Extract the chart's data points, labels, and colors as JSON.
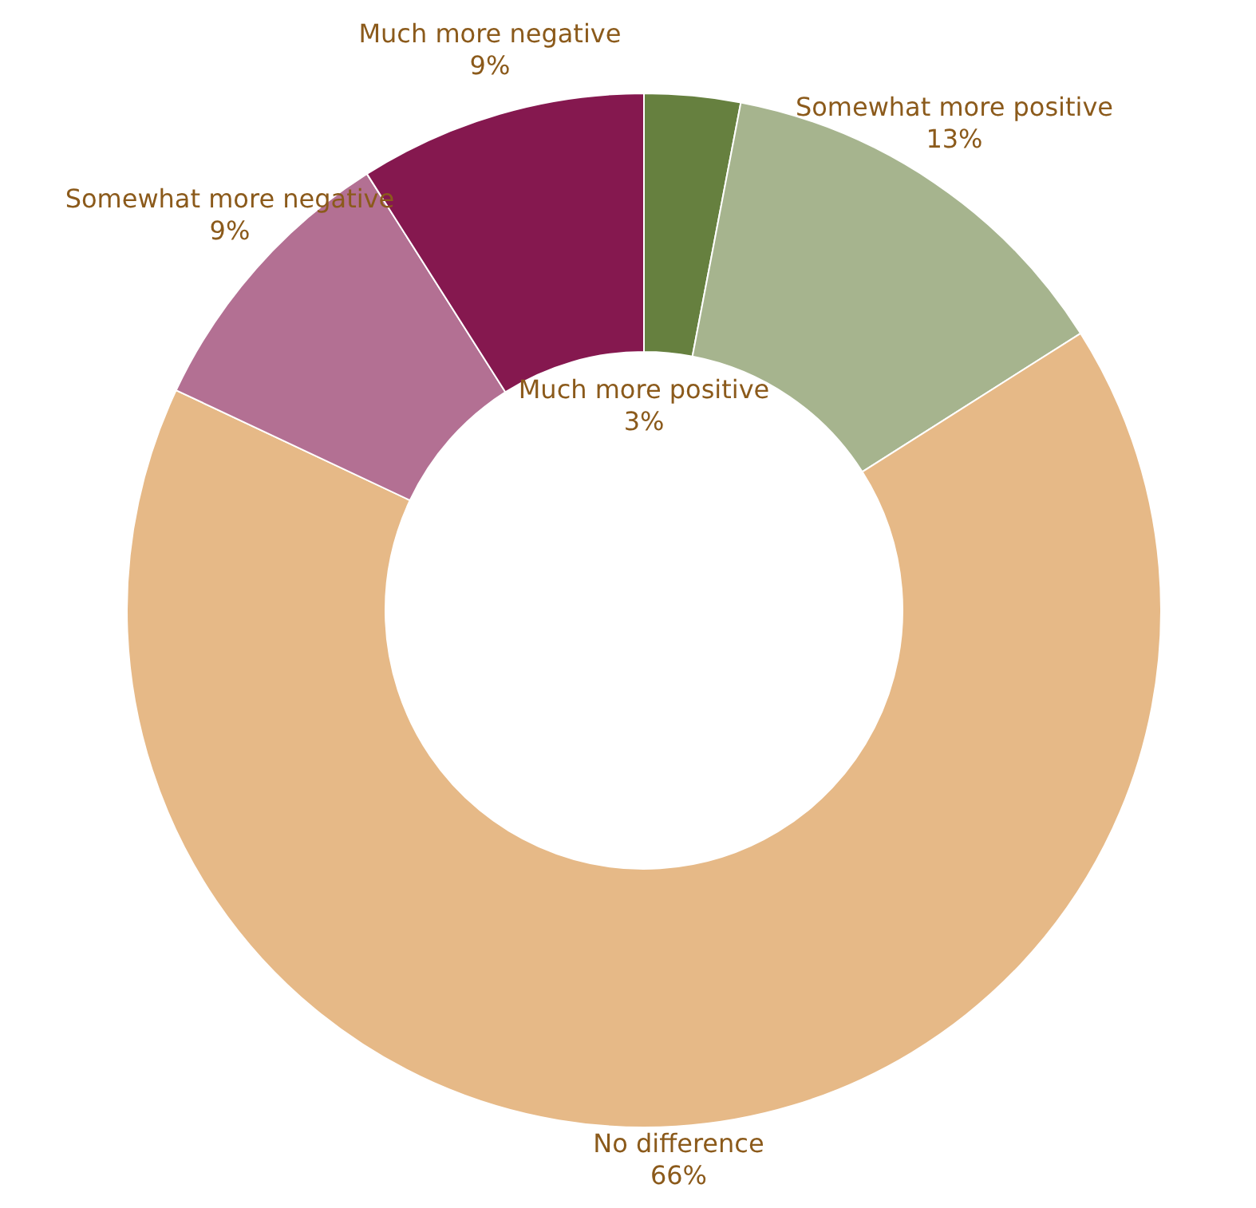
{
  "chart_data": {
    "type": "donut",
    "categories": [
      "Much more positive",
      "Somewhat more positive",
      "No difference",
      "Somewhat more negative",
      "Much more negative"
    ],
    "values": [
      3,
      13,
      66,
      9,
      9
    ],
    "value_labels": [
      "3%",
      "13%",
      "66%",
      "9%",
      "9%"
    ],
    "colors": [
      "#66803f",
      "#a6b48e",
      "#e6b987",
      "#b37093",
      "#85184f"
    ]
  }
}
